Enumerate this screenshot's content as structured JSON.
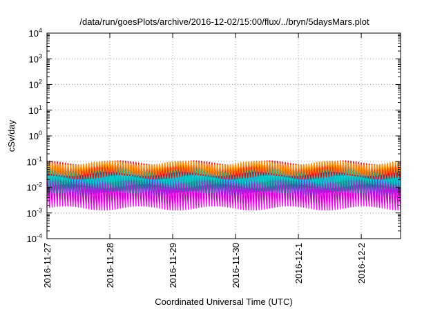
{
  "chart_data": {
    "type": "line",
    "title": "/data/run/goesPlots/archive/2016-12-02/15:00/flux/../bryn/5daysMars.plot",
    "xlabel": "Coordinated Universal Time (UTC)",
    "ylabel": "cSv/day",
    "yscale": "log",
    "ylim": [
      0.0001,
      10000
    ],
    "y_ticks": [
      {
        "base": "10",
        "exp": "-4",
        "value": 0.0001
      },
      {
        "base": "10",
        "exp": "-3",
        "value": 0.001
      },
      {
        "base": "10",
        "exp": "-2",
        "value": 0.01
      },
      {
        "base": "10",
        "exp": "-1",
        "value": 0.1
      },
      {
        "base": "10",
        "exp": "0",
        "value": 1
      },
      {
        "base": "10",
        "exp": "1",
        "value": 10
      },
      {
        "base": "10",
        "exp": "2",
        "value": 100
      },
      {
        "base": "10",
        "exp": "3",
        "value": 1000
      },
      {
        "base": "10",
        "exp": "4",
        "value": 10000
      }
    ],
    "xlim": [
      "2016-11-27",
      "2016-12-02 15:00"
    ],
    "x_ticks": [
      "2016-11-27",
      "2016-11-28",
      "2016-11-29",
      "2016-11-30",
      "2016-12-1",
      "2016-12-2"
    ],
    "grid": true,
    "legend": "none",
    "pattern": "sawtooth, 24 cycles per day",
    "series": [
      {
        "color": "#ff00ff",
        "peak": 0.02,
        "trough": 0.0015
      },
      {
        "color": "#d000d0",
        "peak": 0.03,
        "trough": 0.002
      },
      {
        "color": "#8b2be2",
        "peak": 0.05,
        "trough": 0.004
      },
      {
        "color": "#0000cd",
        "peak": 0.07,
        "trough": 0.007
      },
      {
        "color": "#4682b4",
        "peak": 0.06,
        "trough": 0.006
      },
      {
        "color": "#008b8b",
        "peak": 0.05,
        "trough": 0.008
      },
      {
        "color": "#20b2aa",
        "peak": 0.04,
        "trough": 0.01
      },
      {
        "color": "#00ced1",
        "peak": 0.06,
        "trough": 0.012
      },
      {
        "color": "#ff0000",
        "peak": 0.1,
        "trough": 0.02
      },
      {
        "color": "#ff8c00",
        "peak": 0.1,
        "trough": 0.03
      }
    ]
  }
}
